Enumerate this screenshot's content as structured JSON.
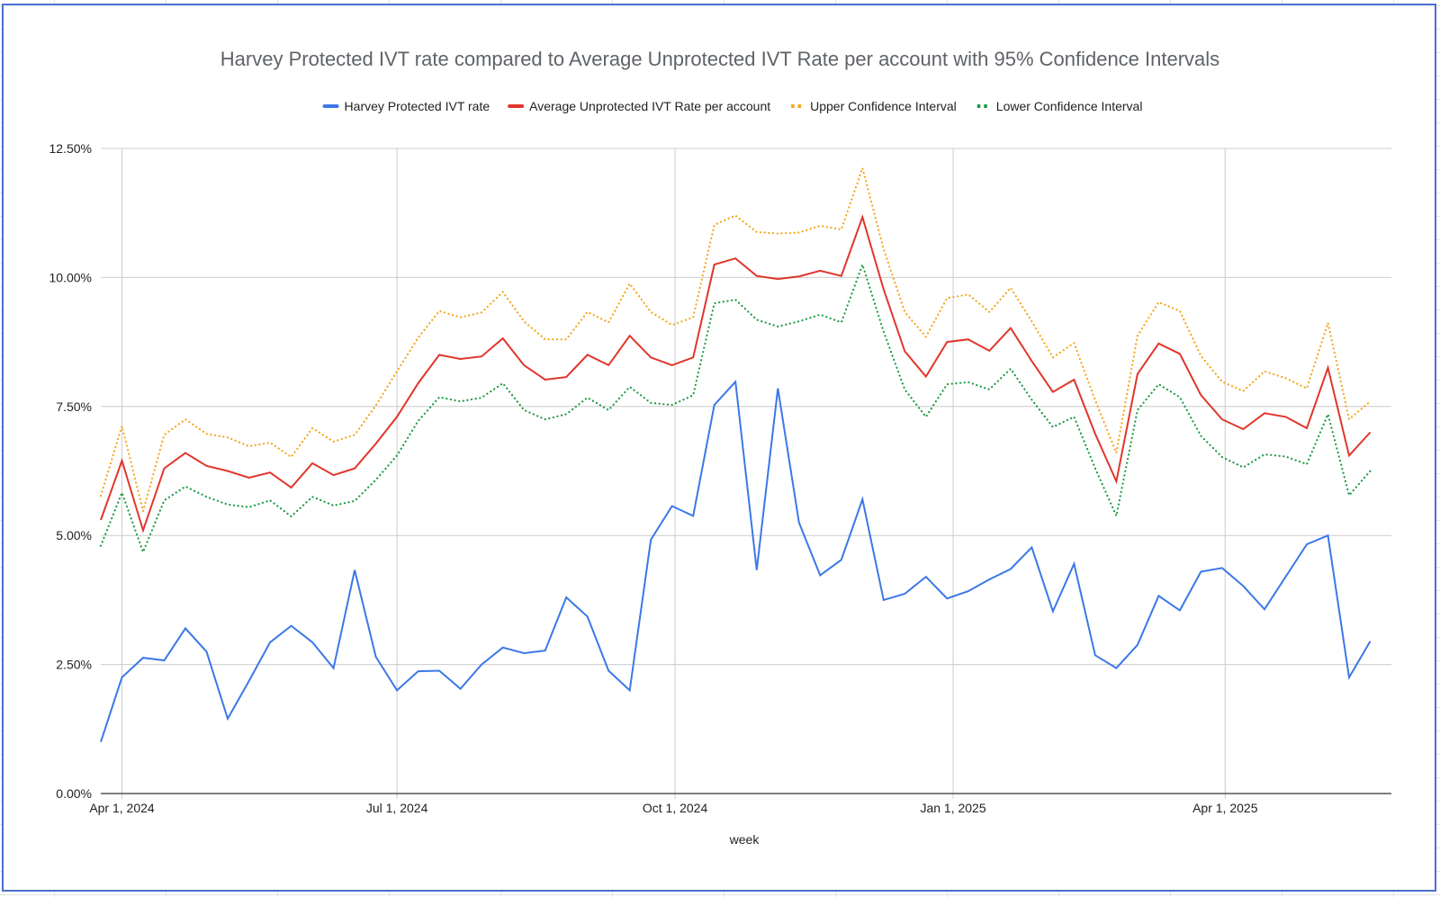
{
  "chart_data": {
    "type": "line",
    "title": "Harvey Protected IVT rate compared to Average Unprotected IVT Rate per account with 95% Confidence Intervals",
    "xlabel": "week",
    "ylabel": "",
    "ylim": [
      0,
      12.5
    ],
    "yticks": [
      0,
      2.5,
      5,
      7.5,
      10,
      12.5
    ],
    "ytick_labels": [
      "0.00%",
      "2.50%",
      "5.00%",
      "7.50%",
      "10.00%",
      "12.50%"
    ],
    "xticks": [
      "2024-04-01",
      "2024-07-01",
      "2024-10-01",
      "2025-01-01",
      "2025-04-01"
    ],
    "xtick_labels": [
      "Apr 1, 2024",
      "Jul 1, 2024",
      "Oct 1, 2024",
      "Jan 1, 2025",
      "Apr 1, 2025"
    ],
    "xlim": [
      "2024-03-25",
      "2025-05-26"
    ],
    "grid": true,
    "legend_position": "top",
    "x": [
      "2024-03-25",
      "2024-04-01",
      "2024-04-08",
      "2024-04-15",
      "2024-04-22",
      "2024-04-29",
      "2024-05-06",
      "2024-05-13",
      "2024-05-20",
      "2024-05-27",
      "2024-06-03",
      "2024-06-10",
      "2024-06-17",
      "2024-06-24",
      "2024-07-01",
      "2024-07-08",
      "2024-07-15",
      "2024-07-22",
      "2024-07-29",
      "2024-08-05",
      "2024-08-12",
      "2024-08-19",
      "2024-08-26",
      "2024-09-02",
      "2024-09-09",
      "2024-09-16",
      "2024-09-23",
      "2024-09-30",
      "2024-10-07",
      "2024-10-14",
      "2024-10-21",
      "2024-10-28",
      "2024-11-04",
      "2024-11-11",
      "2024-11-18",
      "2024-11-25",
      "2024-12-02",
      "2024-12-09",
      "2024-12-16",
      "2024-12-23",
      "2024-12-30",
      "2025-01-06",
      "2025-01-13",
      "2025-01-20",
      "2025-01-27",
      "2025-02-03",
      "2025-02-10",
      "2025-02-17",
      "2025-02-24",
      "2025-03-03",
      "2025-03-10",
      "2025-03-17",
      "2025-03-24",
      "2025-03-31",
      "2025-04-07",
      "2025-04-14",
      "2025-04-21",
      "2025-04-28",
      "2025-05-05",
      "2025-05-12",
      "2025-05-19"
    ],
    "series": [
      {
        "name": "Harvey Protected IVT rate",
        "color": "#3b78e7",
        "style": "solid",
        "values": [
          1.0,
          2.25,
          2.63,
          2.58,
          3.2,
          2.75,
          1.45,
          2.18,
          2.93,
          3.25,
          2.93,
          2.43,
          4.33,
          2.65,
          2.0,
          2.37,
          2.38,
          2.03,
          2.5,
          2.83,
          2.72,
          2.77,
          3.8,
          3.43,
          2.38,
          2.0,
          4.92,
          5.57,
          5.38,
          7.53,
          7.98,
          4.33,
          7.85,
          5.25,
          4.23,
          4.53,
          5.7,
          3.75,
          3.87,
          4.2,
          3.78,
          3.92,
          4.15,
          4.35,
          4.77,
          3.53,
          4.45,
          2.68,
          2.43,
          2.88,
          3.83,
          3.55,
          4.3,
          4.37,
          4.02,
          3.57,
          4.2,
          4.83,
          5.0,
          2.25,
          2.95
        ]
      },
      {
        "name": "Average Unprotected IVT Rate per account",
        "color": "#e0362b",
        "style": "solid",
        "values": [
          5.3,
          6.45,
          5.1,
          6.3,
          6.6,
          6.35,
          6.25,
          6.12,
          6.22,
          5.93,
          6.4,
          6.17,
          6.3,
          6.78,
          7.3,
          7.95,
          8.5,
          8.42,
          8.47,
          8.82,
          8.3,
          8.02,
          8.07,
          8.5,
          8.3,
          8.87,
          8.45,
          8.3,
          8.45,
          10.25,
          10.37,
          10.03,
          9.97,
          10.02,
          10.13,
          10.03,
          11.17,
          9.77,
          8.57,
          8.08,
          8.75,
          8.8,
          8.58,
          9.02,
          8.38,
          7.78,
          8.02,
          6.97,
          6.05,
          8.13,
          8.72,
          8.52,
          7.72,
          7.25,
          7.06,
          7.37,
          7.3,
          7.08,
          8.25,
          6.55,
          7.0
        ]
      },
      {
        "name": "Upper Confidence Interval",
        "color": "#f4a61b",
        "style": "dotted",
        "values": [
          5.77,
          7.12,
          5.47,
          6.95,
          7.25,
          6.97,
          6.9,
          6.73,
          6.8,
          6.52,
          7.08,
          6.82,
          6.95,
          7.52,
          8.18,
          8.83,
          9.35,
          9.23,
          9.32,
          9.72,
          9.15,
          8.8,
          8.8,
          9.33,
          9.13,
          9.88,
          9.33,
          9.08,
          9.23,
          11.02,
          11.2,
          10.88,
          10.85,
          10.87,
          11.0,
          10.93,
          12.12,
          10.55,
          9.33,
          8.85,
          9.6,
          9.67,
          9.33,
          9.8,
          9.15,
          8.45,
          8.73,
          7.62,
          6.6,
          8.87,
          9.52,
          9.35,
          8.48,
          7.98,
          7.8,
          8.18,
          8.05,
          7.85,
          9.12,
          7.25,
          7.6
        ]
      },
      {
        "name": "Lower Confidence Interval",
        "color": "#1e9a44",
        "style": "dotted",
        "values": [
          4.8,
          5.83,
          4.68,
          5.68,
          5.95,
          5.75,
          5.6,
          5.55,
          5.68,
          5.37,
          5.75,
          5.58,
          5.67,
          6.08,
          6.55,
          7.22,
          7.68,
          7.6,
          7.67,
          7.95,
          7.43,
          7.25,
          7.35,
          7.67,
          7.43,
          7.88,
          7.57,
          7.53,
          7.72,
          9.5,
          9.57,
          9.18,
          9.05,
          9.15,
          9.28,
          9.13,
          10.25,
          8.95,
          7.83,
          7.3,
          7.93,
          7.97,
          7.83,
          8.23,
          7.63,
          7.1,
          7.3,
          6.3,
          5.38,
          7.43,
          7.93,
          7.68,
          6.93,
          6.52,
          6.32,
          6.57,
          6.53,
          6.38,
          7.35,
          5.78,
          6.25
        ]
      }
    ]
  }
}
